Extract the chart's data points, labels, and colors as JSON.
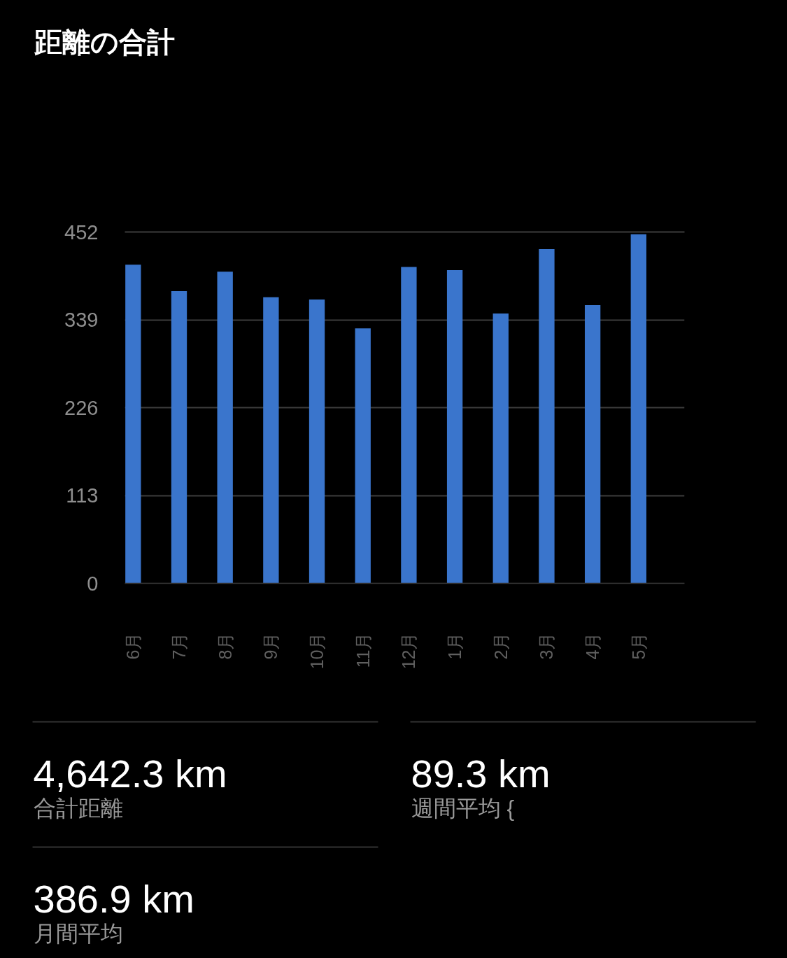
{
  "chart_data": {
    "type": "bar",
    "title": "距離の合計",
    "categories": [
      "6月",
      "7月",
      "8月",
      "9月",
      "10月",
      "11月",
      "12月",
      "1月",
      "2月",
      "3月",
      "4月",
      "5月"
    ],
    "values": [
      410,
      376,
      401,
      368,
      365,
      328,
      407,
      403,
      347,
      430,
      358,
      449
    ],
    "color": "#3a75cc",
    "ylim": [
      0,
      452
    ],
    "yticks": [
      0,
      113,
      226,
      339,
      452
    ],
    "grid": "y",
    "annotations": [
      "4,642.3 km",
      "合計距離",
      "89.3 km",
      "週間平均 {",
      "386.9 km",
      "月間平均"
    ]
  }
}
